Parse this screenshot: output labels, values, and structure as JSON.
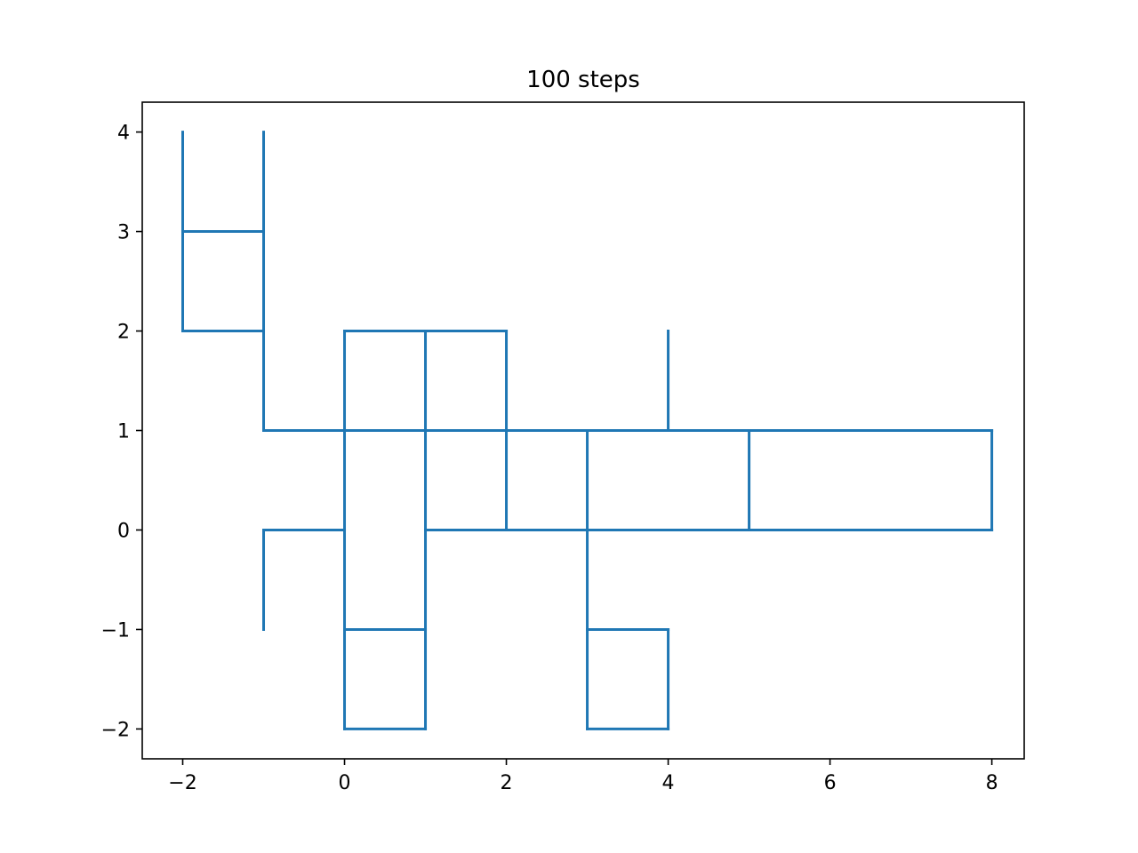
{
  "chart_data": {
    "type": "line",
    "title": "100 steps",
    "xlabel": "",
    "ylabel": "",
    "xlim": [
      -2.5,
      8.4
    ],
    "ylim": [
      -2.3,
      4.3
    ],
    "xticks": [
      -2,
      0,
      2,
      4,
      6,
      8
    ],
    "yticks": [
      -2,
      -1,
      0,
      1,
      2,
      3,
      4
    ],
    "xtick_labels": [
      "−2",
      "0",
      "2",
      "4",
      "6",
      "8"
    ],
    "ytick_labels": [
      "−2",
      "−1",
      "0",
      "1",
      "2",
      "3",
      "4"
    ],
    "grid": false,
    "legend": "none",
    "color": "#1f77b4",
    "segments": [
      [
        [
          -2,
          4
        ],
        [
          -2,
          2
        ]
      ],
      [
        [
          -2,
          3
        ],
        [
          -1,
          3
        ]
      ],
      [
        [
          -2,
          2
        ],
        [
          -1,
          2
        ]
      ],
      [
        [
          -1,
          4
        ],
        [
          -1,
          1
        ]
      ],
      [
        [
          -1,
          1
        ],
        [
          8,
          1
        ]
      ],
      [
        [
          0,
          2
        ],
        [
          2,
          2
        ]
      ],
      [
        [
          0,
          2
        ],
        [
          0,
          -2
        ]
      ],
      [
        [
          1,
          2
        ],
        [
          1,
          -2
        ]
      ],
      [
        [
          2,
          2
        ],
        [
          2,
          0
        ]
      ],
      [
        [
          0,
          -2
        ],
        [
          1,
          -2
        ]
      ],
      [
        [
          0,
          -1
        ],
        [
          1,
          -1
        ]
      ],
      [
        [
          -1,
          0
        ],
        [
          0,
          0
        ]
      ],
      [
        [
          -1,
          0
        ],
        [
          -1,
          -1
        ]
      ],
      [
        [
          1,
          0
        ],
        [
          8,
          0
        ]
      ],
      [
        [
          8,
          0
        ],
        [
          8,
          1
        ]
      ],
      [
        [
          3,
          1
        ],
        [
          3,
          -2
        ]
      ],
      [
        [
          5,
          1
        ],
        [
          5,
          0
        ]
      ],
      [
        [
          4,
          1
        ],
        [
          4,
          2
        ]
      ],
      [
        [
          3,
          -1
        ],
        [
          4,
          -1
        ]
      ],
      [
        [
          3,
          -2
        ],
        [
          4,
          -2
        ]
      ],
      [
        [
          4,
          -1
        ],
        [
          4,
          -2
        ]
      ]
    ]
  }
}
